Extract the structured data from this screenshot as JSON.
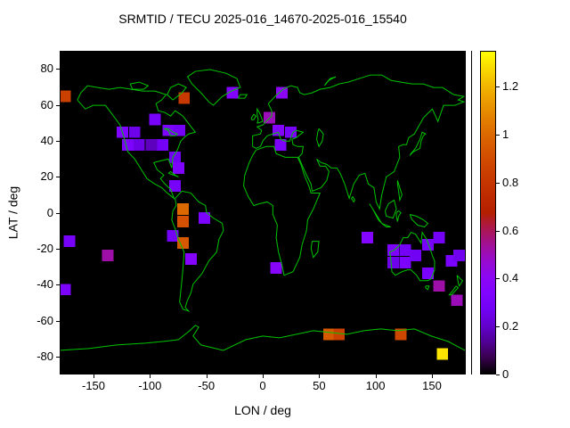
{
  "title": "SRMTID / TECU 2025-016_14670-2025-016_15540",
  "axes": {
    "xlabel": "LON / deg",
    "ylabel": "LAT / deg",
    "xlim": [
      -180,
      180
    ],
    "ylim": [
      -90,
      90
    ],
    "xticks": [
      -150,
      -100,
      -50,
      0,
      50,
      100,
      150
    ],
    "yticks": [
      80,
      60,
      40,
      20,
      0,
      -20,
      -40,
      -60,
      -80
    ]
  },
  "colorbar": {
    "min": 0,
    "max": 1.35,
    "ticks": [
      0,
      0.2,
      0.4,
      0.6,
      0.8,
      1,
      1.2
    ],
    "tick_labels": [
      "0",
      "0.2",
      "0.4",
      "0.6",
      "0.8",
      "1",
      "1.2"
    ]
  },
  "colors": {
    "background": "#ffffff",
    "plot_background": "#000000",
    "coastline": "#00c400",
    "text": "#000000"
  },
  "chart_data": {
    "type": "heatmap",
    "marker": "square",
    "title": "SRMTID / TECU 2025-016_14670-2025-016_15540",
    "xlabel": "LON / deg",
    "ylabel": "LAT / deg",
    "xlim": [
      -180,
      180
    ],
    "ylim": [
      -90,
      90
    ],
    "value_units": "TECU",
    "colorbar_range": [
      0,
      1.35
    ],
    "palette": "gnuplot pm3d default (black-violet-magenta-orange-yellow)",
    "columns": [
      "lon_deg",
      "lat_deg",
      "value_TECU"
    ],
    "points": [
      [
        -176,
        65,
        0.85
      ],
      [
        -70,
        64,
        0.82
      ],
      [
        -27,
        67,
        0.35
      ],
      [
        17,
        67,
        0.4
      ],
      [
        -96,
        52,
        0.3
      ],
      [
        6,
        53,
        0.5
      ],
      [
        -125,
        45,
        0.33
      ],
      [
        -114,
        45,
        0.25
      ],
      [
        -84,
        46,
        0.32
      ],
      [
        -74,
        46,
        0.28
      ],
      [
        14,
        46,
        0.36
      ],
      [
        25,
        45,
        0.3
      ],
      [
        -120,
        38,
        0.32
      ],
      [
        -110,
        38,
        0.24
      ],
      [
        -99,
        38,
        0.18
      ],
      [
        -89,
        38,
        0.28
      ],
      [
        16,
        38,
        0.32
      ],
      [
        -78,
        31,
        0.27
      ],
      [
        -75,
        25,
        0.33
      ],
      [
        -78,
        15,
        0.3
      ],
      [
        -71,
        2,
        1.0
      ],
      [
        -71,
        -5,
        0.92
      ],
      [
        -52,
        -3,
        0.32
      ],
      [
        -80,
        -13,
        0.28
      ],
      [
        -71,
        -17,
        0.95
      ],
      [
        -64,
        -26,
        0.37
      ],
      [
        -138,
        -24,
        0.52
      ],
      [
        -172,
        -16,
        0.3
      ],
      [
        -176,
        -43,
        0.32
      ],
      [
        12,
        -31,
        0.38
      ],
      [
        93,
        -14,
        0.36
      ],
      [
        116,
        -21,
        0.32
      ],
      [
        127,
        -21,
        0.28
      ],
      [
        116,
        -28,
        0.25
      ],
      [
        127,
        -28,
        0.32
      ],
      [
        136,
        -24,
        0.27
      ],
      [
        147,
        -18,
        0.3
      ],
      [
        157,
        -14,
        0.28
      ],
      [
        168,
        -27,
        0.31
      ],
      [
        175,
        -24,
        0.26
      ],
      [
        147,
        -34,
        0.31
      ],
      [
        157,
        -41,
        0.52
      ],
      [
        173,
        -49,
        0.5
      ],
      [
        59,
        -68,
        0.95
      ],
      [
        68,
        -68,
        0.85
      ],
      [
        123,
        -68,
        0.88
      ],
      [
        160,
        -79,
        1.3
      ]
    ]
  }
}
